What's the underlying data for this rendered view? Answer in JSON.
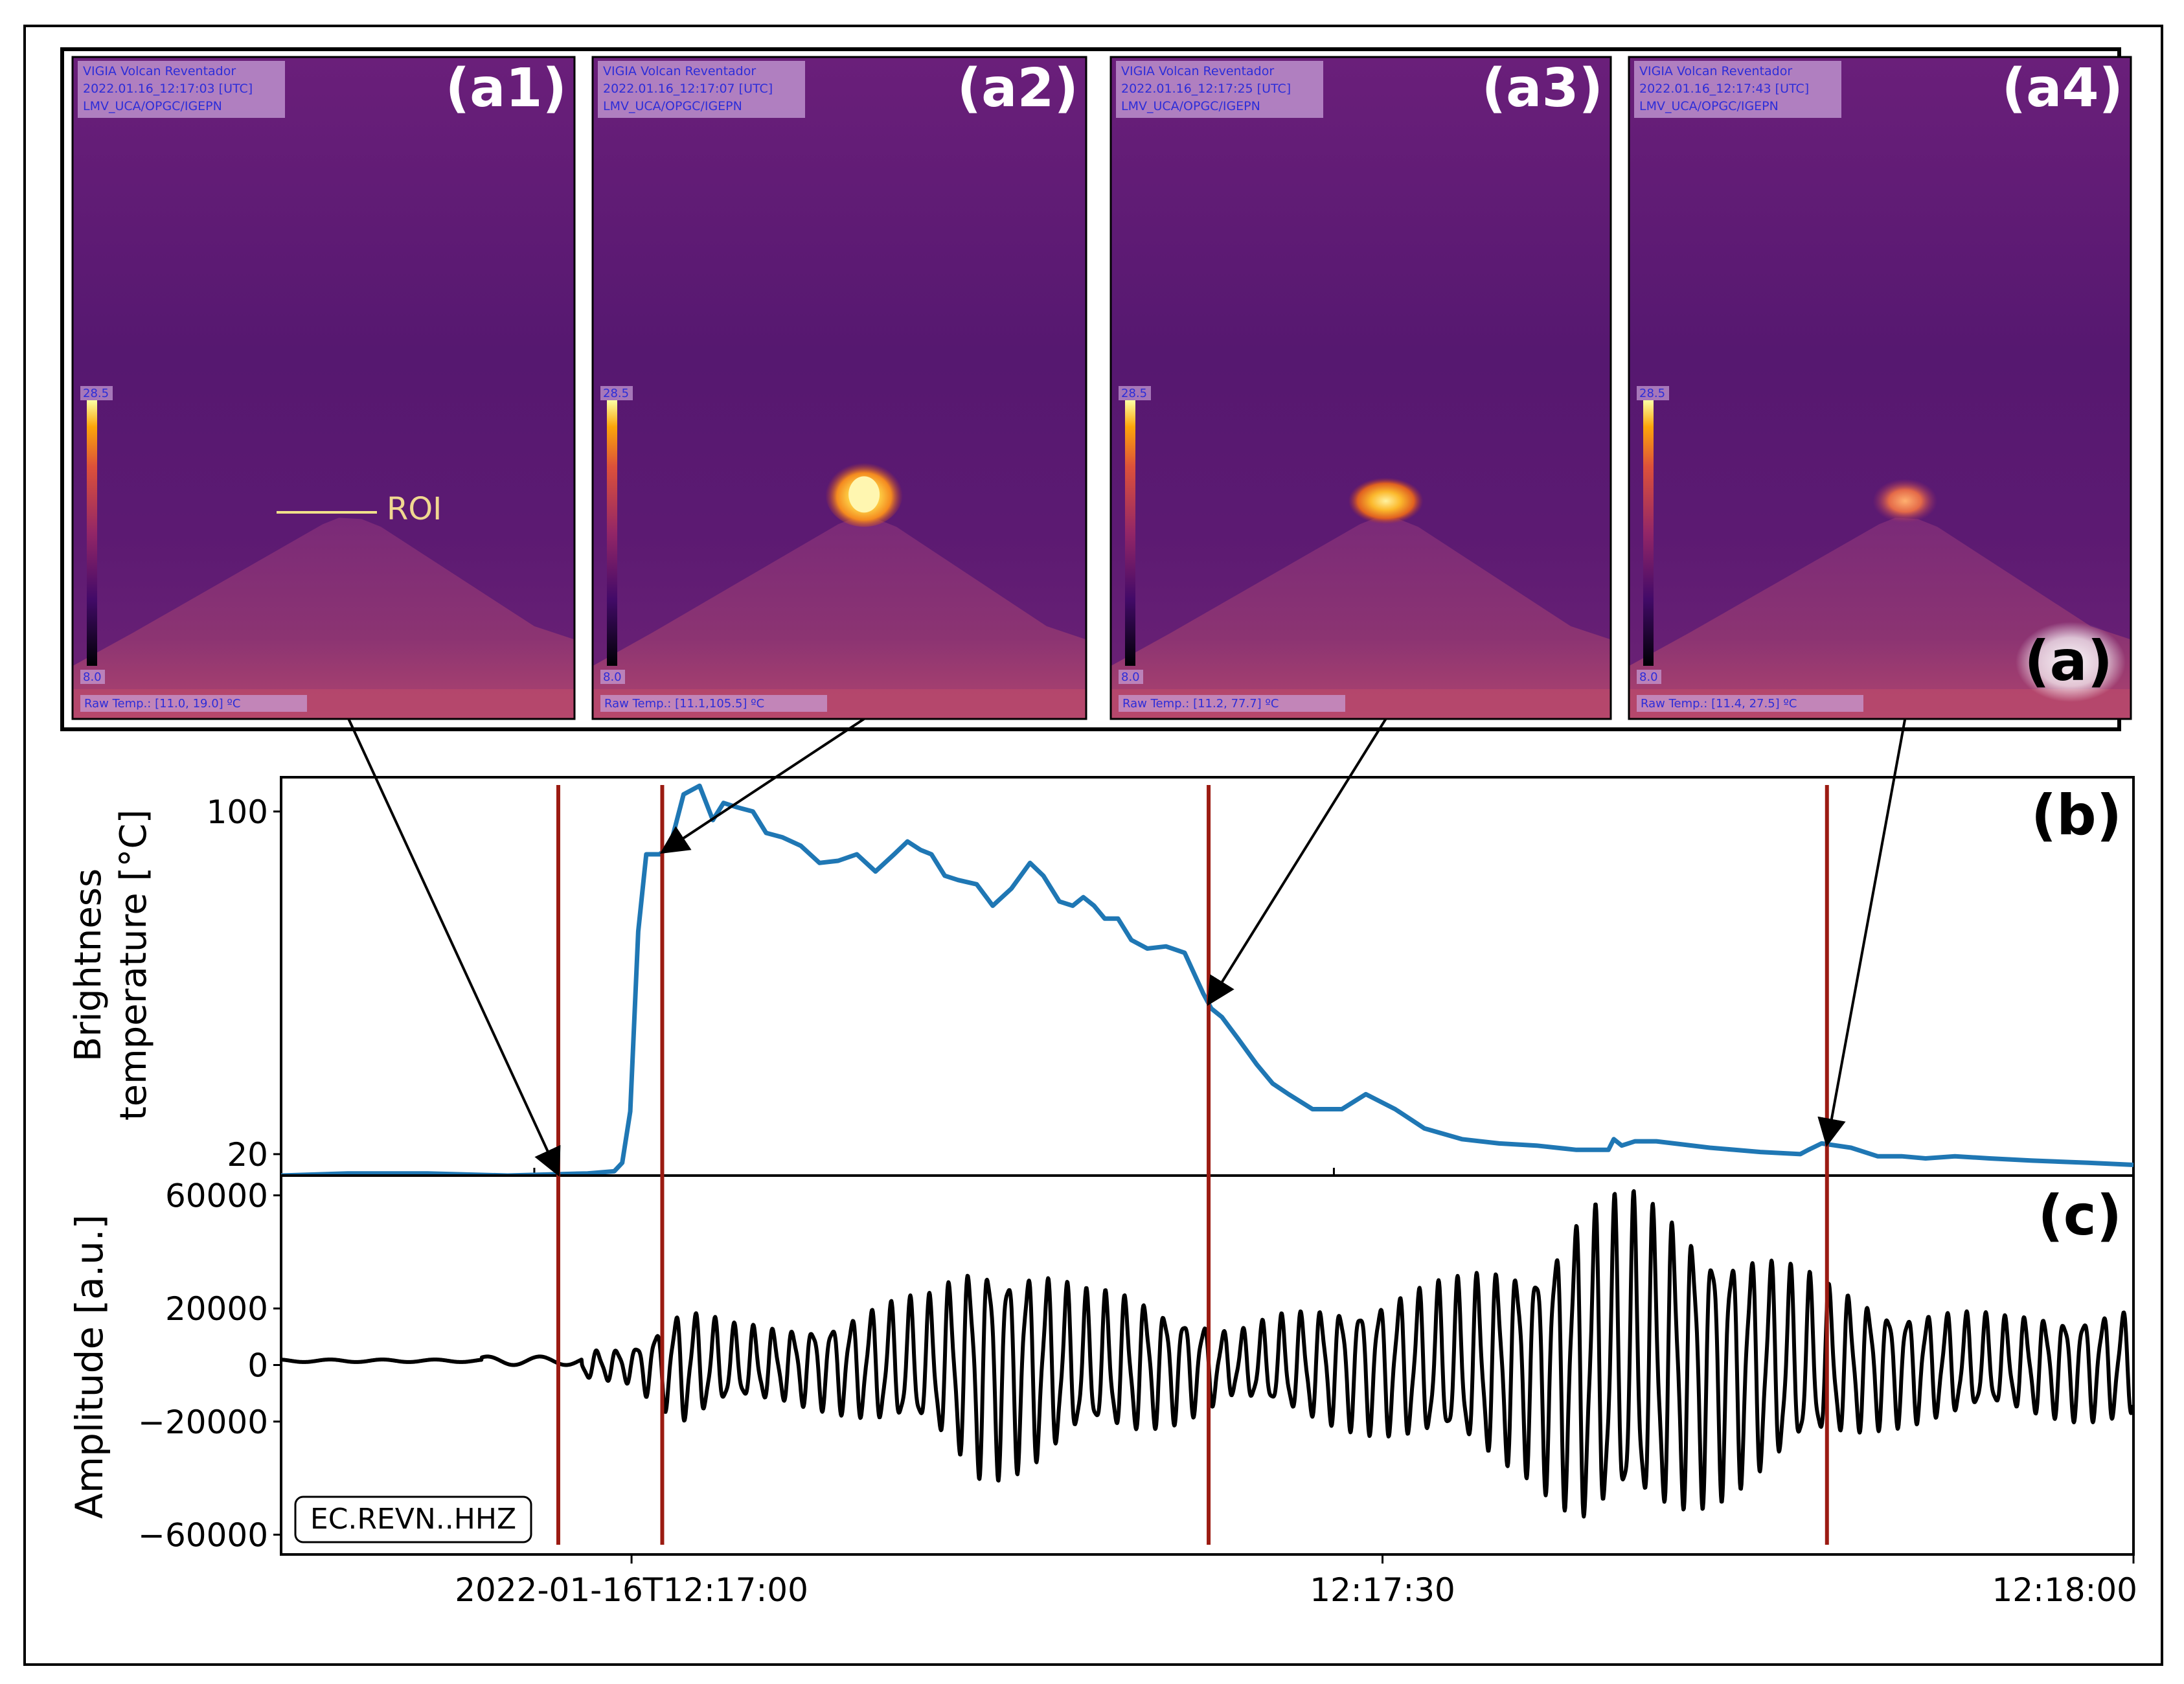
{
  "panel_a": {
    "label": "(a)",
    "frames": [
      {
        "label": "(a1)",
        "header": [
          "VIGIA Volcan Reventador",
          "2022.01.16_12:17:03 [UTC]",
          "LMV_UCA/OPGC/IGEPN"
        ],
        "scale_max": "28.5",
        "scale_min": "8.0",
        "raw_temp": "Raw Temp.: [11.0, 19.0] ºC",
        "roi_label": "ROI",
        "glow": "none"
      },
      {
        "label": "(a2)",
        "header": [
          "VIGIA Volcan Reventador",
          "2022.01.16_12:17:07 [UTC]",
          "LMV_UCA/OPGC/IGEPN"
        ],
        "scale_max": "28.5",
        "scale_min": "8.0",
        "raw_temp": "Raw Temp.: [11.1,105.5] ºC",
        "roi_label": "",
        "glow": "strong"
      },
      {
        "label": "(a3)",
        "header": [
          "VIGIA Volcan Reventador",
          "2022.01.16_12:17:25 [UTC]",
          "LMV_UCA/OPGC/IGEPN"
        ],
        "scale_max": "28.5",
        "scale_min": "8.0",
        "raw_temp": "Raw Temp.: [11.2, 77.7] ºC",
        "roi_label": "",
        "glow": "medium"
      },
      {
        "label": "(a4)",
        "header": [
          "VIGIA Volcan Reventador",
          "2022.01.16_12:17:43 [UTC]",
          "LMV_UCA/OPGC/IGEPN"
        ],
        "scale_max": "28.5",
        "scale_min": "8.0",
        "raw_temp": "Raw Temp.: [11.4, 27.5] ºC",
        "roi_label": "",
        "glow": "weak"
      }
    ]
  },
  "chart_data": [
    {
      "type": "line",
      "panel_label": "(b)",
      "ylabel": [
        "Brightness",
        "temperature [°C]"
      ],
      "yticks": [
        20,
        100
      ],
      "ylim": [
        15,
        108
      ],
      "xlim": [
        -9.5,
        60
      ],
      "xticks": [
        {
          "x": 0,
          "label": "12:17:00"
        },
        {
          "x": 30,
          "label": "12:17:30"
        }
      ],
      "color": "#1f77b4",
      "series": [
        {
          "x": [
            -9.5,
            -7,
            -4,
            -1,
            2,
            3.0,
            3.3,
            3.6,
            3.9,
            4.2,
            4.4,
            4.7,
            5.1,
            5.6,
            6.2,
            6.7,
            7.1,
            7.6,
            8.2,
            8.7,
            9.3,
            10.0,
            10.7,
            11.4,
            12.1,
            12.8,
            13.5,
            14.0,
            14.5,
            14.9,
            15.4,
            15.9,
            16.6,
            17.2,
            17.9,
            18.6,
            19.1,
            19.7,
            20.2,
            20.6,
            21.0,
            21.4,
            21.9,
            22.4,
            23.0,
            23.7,
            24.4,
            25.1,
            25.4,
            25.8,
            26.4,
            27.1,
            27.7,
            28.3,
            29.2,
            30.3,
            31.2,
            32.3,
            33.4,
            34.8,
            36.2,
            37.6,
            39.1,
            40.3,
            40.5,
            40.8,
            41.3,
            42.1,
            44.1,
            46.0,
            47.5,
            47.8,
            48.3,
            49.4,
            50.4,
            51.3,
            52.2,
            53.3,
            54.6,
            56.2,
            58.3,
            60.0
          ],
          "y": [
            15,
            15.5,
            15.5,
            15,
            15.5,
            16,
            18,
            30,
            72,
            90,
            90,
            90,
            92,
            104,
            106,
            98,
            102,
            101,
            100,
            95,
            94,
            92,
            88,
            88.5,
            90,
            86,
            90,
            93,
            91,
            90,
            85,
            84,
            83,
            78,
            82,
            88,
            85,
            79,
            78,
            80,
            78,
            75,
            75,
            70,
            68,
            68.5,
            67,
            57.5,
            54,
            52,
            47,
            41,
            36.5,
            34,
            30.5,
            30.5,
            34,
            30.5,
            26,
            23.5,
            22.5,
            22,
            21,
            21,
            23.5,
            22,
            23,
            23,
            21.5,
            20.5,
            20,
            21,
            22.5,
            21.5,
            19.5,
            19.5,
            19,
            19.5,
            19,
            18.5,
            18,
            17.5
          ]
        }
      ]
    },
    {
      "type": "line",
      "panel_label": "(c)",
      "ylabel": "Amplitude [a.u.]",
      "ylim": [
        -67000,
        67000
      ],
      "yticks": [
        {
          "v": 60000,
          "label": "60000"
        },
        {
          "v": 20000,
          "label": "20000"
        },
        {
          "v": 0,
          "label": "0"
        },
        {
          "v": -20000,
          "label": "−20000"
        },
        {
          "v": -60000,
          "label": "−60000"
        }
      ],
      "xlim": [
        -14,
        60
      ],
      "xticks": [
        {
          "x": 0,
          "label": "2022-01-16T12:17:00"
        },
        {
          "x": 30,
          "label": "12:17:30"
        },
        {
          "x": 60,
          "label": "12:18:00"
        }
      ],
      "color": "#000000",
      "station": "EC.REVN..HHZ",
      "envelope_t": [
        -14,
        -5,
        0,
        2,
        4,
        6,
        8,
        10,
        12,
        14,
        16,
        18,
        20,
        22,
        24,
        26,
        28,
        30,
        33,
        36,
        38,
        40,
        42,
        44,
        46,
        48,
        50,
        52,
        55,
        58,
        60
      ],
      "envelope_a": [
        0.02,
        0.04,
        0.1,
        0.32,
        0.22,
        0.2,
        0.25,
        0.33,
        0.38,
        0.62,
        0.55,
        0.4,
        0.38,
        0.3,
        0.18,
        0.27,
        0.33,
        0.38,
        0.46,
        0.6,
        0.88,
        0.9,
        0.8,
        0.68,
        0.55,
        0.42,
        0.34,
        0.3,
        0.26,
        0.3,
        0.3
      ]
    }
  ],
  "event_lines": [
    0.9,
    4.8,
    25.3,
    48.5
  ]
}
